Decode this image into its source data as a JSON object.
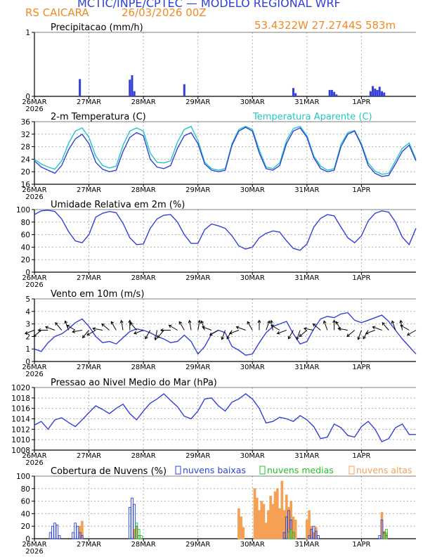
{
  "header": {
    "title": "MCTIC/INPE/CPTEC — MODELO REGIONAL WRF",
    "location": "RS CAICARA",
    "run": "26/03/2026 00Z",
    "coords": "53.4322W 27.2744S 583m"
  },
  "colors": {
    "title": "#2f3fd8",
    "accent": "#f08a24",
    "series_main": "#3340d6",
    "series_alt": "#22c6c6",
    "cloud_low": "#2a44e0",
    "cloud_mid": "#22c322",
    "cloud_high": "#f5a155",
    "grid": "#b0b0b0"
  },
  "time_axis": {
    "hours_total": 168,
    "ticks": [
      {
        "hour": 0,
        "label": "26MAR",
        "sub": "2026"
      },
      {
        "hour": 24,
        "label": "27MAR",
        "sub": ""
      },
      {
        "hour": 48,
        "label": "28MAR",
        "sub": ""
      },
      {
        "hour": 72,
        "label": "29MAR",
        "sub": ""
      },
      {
        "hour": 96,
        "label": "30MAR",
        "sub": ""
      },
      {
        "hour": 120,
        "label": "31MAR",
        "sub": ""
      },
      {
        "hour": 144,
        "label": "1APR",
        "sub": ""
      }
    ]
  },
  "chart_data": [
    {
      "type": "bar",
      "id": "precip",
      "title": "Precipitacao (mm/h)",
      "ylim": [
        0,
        1
      ],
      "yticks": [
        0,
        1
      ],
      "x": [
        20,
        42,
        43,
        44,
        66,
        114,
        115,
        130,
        131,
        132,
        133,
        148,
        149,
        150,
        151,
        152,
        153,
        154
      ],
      "values": [
        0.27,
        0.26,
        0.33,
        0.08,
        0.19,
        0.13,
        0.05,
        0.1,
        0.1,
        0.07,
        0.03,
        0.08,
        0.16,
        0.12,
        0.1,
        0.15,
        0.08,
        0.06
      ]
    },
    {
      "type": "line",
      "id": "temp",
      "title": "2-m Temperatura (C)",
      "legend_extra": "Temperatura Aparente (C)",
      "ylim": [
        16,
        36
      ],
      "yticks": [
        16,
        20,
        24,
        28,
        32,
        36
      ],
      "series": [
        {
          "name": "2-m Temperatura (C)",
          "x": [
            0,
            3,
            6,
            9,
            12,
            15,
            18,
            21,
            24,
            27,
            30,
            33,
            36,
            39,
            42,
            45,
            48,
            51,
            54,
            57,
            60,
            63,
            66,
            69,
            72,
            75,
            78,
            81,
            84,
            87,
            90,
            93,
            96,
            99,
            102,
            105,
            108,
            111,
            114,
            117,
            120,
            123,
            126,
            129,
            132,
            135,
            138,
            141,
            144,
            147,
            150,
            153,
            156,
            159,
            162,
            165,
            168
          ],
          "values": [
            23.5,
            21.5,
            20.5,
            19.5,
            22.0,
            27.0,
            30.5,
            32.0,
            29.0,
            23.0,
            20.8,
            20.0,
            20.5,
            26.5,
            31.0,
            32.5,
            31.5,
            24.0,
            21.5,
            21.0,
            22.0,
            27.5,
            31.5,
            32.5,
            29.0,
            22.5,
            20.5,
            20.0,
            20.5,
            28.5,
            33.0,
            34.2,
            33.0,
            26.0,
            21.0,
            20.5,
            22.0,
            29.0,
            33.0,
            34.0,
            31.0,
            24.5,
            21.0,
            20.0,
            20.5,
            28.0,
            32.0,
            33.0,
            28.5,
            22.0,
            19.5,
            18.5,
            18.8,
            22.5,
            26.5,
            28.5,
            23.5
          ]
        },
        {
          "name": "Temperatura Aparente (C)",
          "x": [
            0,
            3,
            6,
            9,
            12,
            15,
            18,
            21,
            24,
            27,
            30,
            33,
            36,
            39,
            42,
            45,
            48,
            51,
            54,
            57,
            60,
            63,
            66,
            69,
            72,
            75,
            78,
            81,
            84,
            87,
            90,
            93,
            96,
            99,
            102,
            105,
            108,
            111,
            114,
            117,
            120,
            123,
            126,
            129,
            132,
            135,
            138,
            141,
            144,
            147,
            150,
            153,
            156,
            159,
            162,
            165,
            168
          ],
          "values": [
            24.0,
            22.5,
            21.5,
            20.8,
            23.5,
            29.0,
            33.0,
            34.0,
            31.0,
            25.0,
            22.0,
            21.2,
            21.8,
            28.5,
            33.0,
            34.0,
            33.0,
            26.0,
            23.0,
            22.8,
            23.5,
            29.5,
            33.5,
            34.5,
            30.0,
            23.0,
            21.0,
            20.5,
            21.0,
            29.0,
            33.5,
            34.5,
            33.5,
            27.0,
            21.5,
            21.0,
            22.8,
            30.0,
            33.8,
            34.5,
            31.5,
            25.0,
            21.8,
            20.5,
            21.0,
            28.8,
            32.5,
            33.2,
            29.0,
            22.8,
            20.2,
            19.2,
            19.5,
            23.5,
            27.5,
            29.2,
            24.0
          ]
        }
      ]
    },
    {
      "type": "line",
      "id": "rh",
      "title": "Umidade Relativa em 2m (%)",
      "ylim": [
        0,
        100
      ],
      "yticks": [
        0,
        20,
        40,
        60,
        80,
        100
      ],
      "series": [
        {
          "name": "Umidade Relativa em 2m (%)",
          "x": [
            0,
            3,
            6,
            9,
            12,
            15,
            18,
            21,
            24,
            27,
            30,
            33,
            36,
            39,
            42,
            45,
            48,
            51,
            54,
            57,
            60,
            63,
            66,
            69,
            72,
            75,
            78,
            81,
            84,
            87,
            90,
            93,
            96,
            99,
            102,
            105,
            108,
            111,
            114,
            117,
            120,
            123,
            126,
            129,
            132,
            135,
            138,
            141,
            144,
            147,
            150,
            153,
            156,
            159,
            162,
            165,
            168
          ],
          "values": [
            92,
            98,
            99,
            97,
            85,
            65,
            50,
            47,
            60,
            88,
            94,
            97,
            95,
            78,
            55,
            44,
            45,
            70,
            85,
            91,
            92,
            80,
            60,
            46,
            46,
            68,
            77,
            74,
            70,
            58,
            42,
            37,
            40,
            55,
            62,
            66,
            64,
            50,
            38,
            35,
            45,
            72,
            86,
            92,
            90,
            72,
            55,
            47,
            58,
            82,
            94,
            98,
            96,
            80,
            56,
            44,
            70
          ]
        }
      ]
    },
    {
      "type": "line",
      "id": "wind",
      "title": "Vento em 10m (m/s)",
      "ylim": [
        0,
        5
      ],
      "yticks": [
        0,
        1,
        2,
        3,
        4,
        5
      ],
      "barb_baseline": 2.5,
      "arrow_directions_deg": [
        200,
        220,
        180,
        160,
        130,
        110,
        150,
        190,
        230,
        210,
        170,
        140,
        120,
        100,
        90,
        130,
        200,
        240,
        260,
        230,
        180,
        150,
        120,
        100,
        80,
        110,
        160,
        210,
        250,
        240,
        200,
        160,
        120,
        90,
        70,
        100,
        150,
        200,
        240,
        250,
        220,
        170,
        140,
        110,
        90,
        120,
        170,
        220,
        250,
        240,
        200,
        160,
        130,
        110,
        100,
        150,
        210
      ],
      "series": [
        {
          "name": "Vento em 10m (m/s)",
          "x": [
            0,
            3,
            6,
            9,
            12,
            15,
            18,
            21,
            24,
            27,
            30,
            33,
            36,
            39,
            42,
            45,
            48,
            51,
            54,
            57,
            60,
            63,
            66,
            69,
            72,
            75,
            78,
            81,
            84,
            87,
            90,
            93,
            96,
            99,
            102,
            105,
            108,
            111,
            114,
            117,
            120,
            123,
            126,
            129,
            132,
            135,
            138,
            141,
            144,
            147,
            150,
            153,
            156,
            159,
            162,
            165,
            168
          ],
          "values": [
            1.0,
            0.8,
            1.5,
            2.0,
            2.2,
            2.6,
            3.1,
            3.4,
            2.8,
            2.0,
            1.5,
            1.6,
            1.4,
            1.9,
            2.4,
            2.6,
            2.5,
            2.3,
            2.0,
            1.8,
            1.5,
            1.6,
            2.1,
            1.6,
            0.6,
            1.2,
            2.2,
            2.5,
            2.3,
            1.2,
            0.9,
            0.5,
            0.6,
            1.5,
            2.3,
            2.8,
            3.0,
            3.2,
            2.2,
            1.4,
            1.6,
            2.6,
            3.4,
            3.6,
            3.5,
            3.8,
            3.9,
            3.3,
            3.1,
            3.3,
            3.5,
            3.7,
            3.2,
            2.5,
            1.8,
            1.2,
            0.6
          ]
        }
      ]
    },
    {
      "type": "line",
      "id": "pressure",
      "title": "Pressao ao Nivel Medio do Mar (hPa)",
      "ylim": [
        1008,
        1020
      ],
      "yticks": [
        1008,
        1010,
        1012,
        1014,
        1016,
        1018,
        1020
      ],
      "series": [
        {
          "name": "Pressao ao Nivel Medio do Mar (hPa)",
          "x": [
            0,
            3,
            6,
            9,
            12,
            15,
            18,
            21,
            24,
            27,
            30,
            33,
            36,
            39,
            42,
            45,
            48,
            51,
            54,
            57,
            60,
            63,
            66,
            69,
            72,
            75,
            78,
            81,
            84,
            87,
            90,
            93,
            96,
            99,
            102,
            105,
            108,
            111,
            114,
            117,
            120,
            123,
            126,
            129,
            132,
            135,
            138,
            141,
            144,
            147,
            150,
            153,
            156,
            159,
            162,
            165,
            168
          ],
          "values": [
            1012.8,
            1013.5,
            1012.0,
            1013.8,
            1014.2,
            1013.3,
            1012.5,
            1013.8,
            1015.2,
            1016.5,
            1015.8,
            1015.0,
            1016.0,
            1016.8,
            1015.0,
            1013.8,
            1015.5,
            1017.0,
            1017.8,
            1018.8,
            1017.5,
            1016.3,
            1014.5,
            1014.0,
            1015.5,
            1017.8,
            1018.0,
            1016.5,
            1015.5,
            1017.2,
            1017.8,
            1018.8,
            1017.8,
            1016.0,
            1013.2,
            1013.5,
            1014.3,
            1014.0,
            1013.5,
            1014.6,
            1013.8,
            1012.5,
            1010.2,
            1010.5,
            1013.0,
            1012.3,
            1010.8,
            1010.5,
            1012.5,
            1013.5,
            1012.0,
            1009.6,
            1010.2,
            1012.3,
            1013.0,
            1011.0,
            1011.0
          ]
        }
      ]
    },
    {
      "type": "bar",
      "id": "clouds",
      "title": "Cobertura de Nuvens (%)",
      "ylim": [
        0,
        100
      ],
      "yticks": [
        0,
        20,
        40,
        60,
        80,
        100
      ],
      "legend": [
        "nuvens baixas",
        "nuvens medias",
        "nuvens altas"
      ],
      "series": [
        {
          "name": "nuvens baixas",
          "x": [
            7,
            8,
            9,
            10,
            11,
            17,
            18,
            19,
            20,
            21,
            42,
            43,
            44,
            45,
            46,
            110,
            111,
            112,
            113,
            114,
            121,
            122,
            123,
            124,
            125,
            152,
            153,
            154,
            155
          ],
          "values": [
            10,
            20,
            25,
            22,
            5,
            10,
            25,
            20,
            10,
            5,
            50,
            65,
            55,
            20,
            5,
            10,
            35,
            45,
            30,
            10,
            5,
            15,
            20,
            12,
            5,
            5,
            30,
            10,
            5
          ]
        },
        {
          "name": "nuvens medias",
          "x": [
            45,
            46,
            47,
            112,
            113,
            114,
            154,
            155
          ],
          "values": [
            25,
            15,
            5,
            10,
            15,
            10,
            8,
            15
          ]
        },
        {
          "name": "nuvens altas",
          "x": [
            20,
            21,
            44,
            45,
            90,
            91,
            92,
            97,
            98,
            99,
            100,
            101,
            102,
            103,
            104,
            105,
            106,
            107,
            108,
            109,
            110,
            111,
            112,
            113,
            114,
            115,
            120,
            121,
            122,
            123,
            124,
            153,
            154,
            155
          ],
          "values": [
            20,
            28,
            15,
            20,
            48,
            35,
            18,
            80,
            65,
            45,
            60,
            55,
            25,
            45,
            68,
            55,
            75,
            80,
            48,
            92,
            45,
            70,
            50,
            60,
            35,
            30,
            30,
            45,
            20,
            10,
            18,
            42,
            12,
            10
          ]
        }
      ]
    }
  ]
}
